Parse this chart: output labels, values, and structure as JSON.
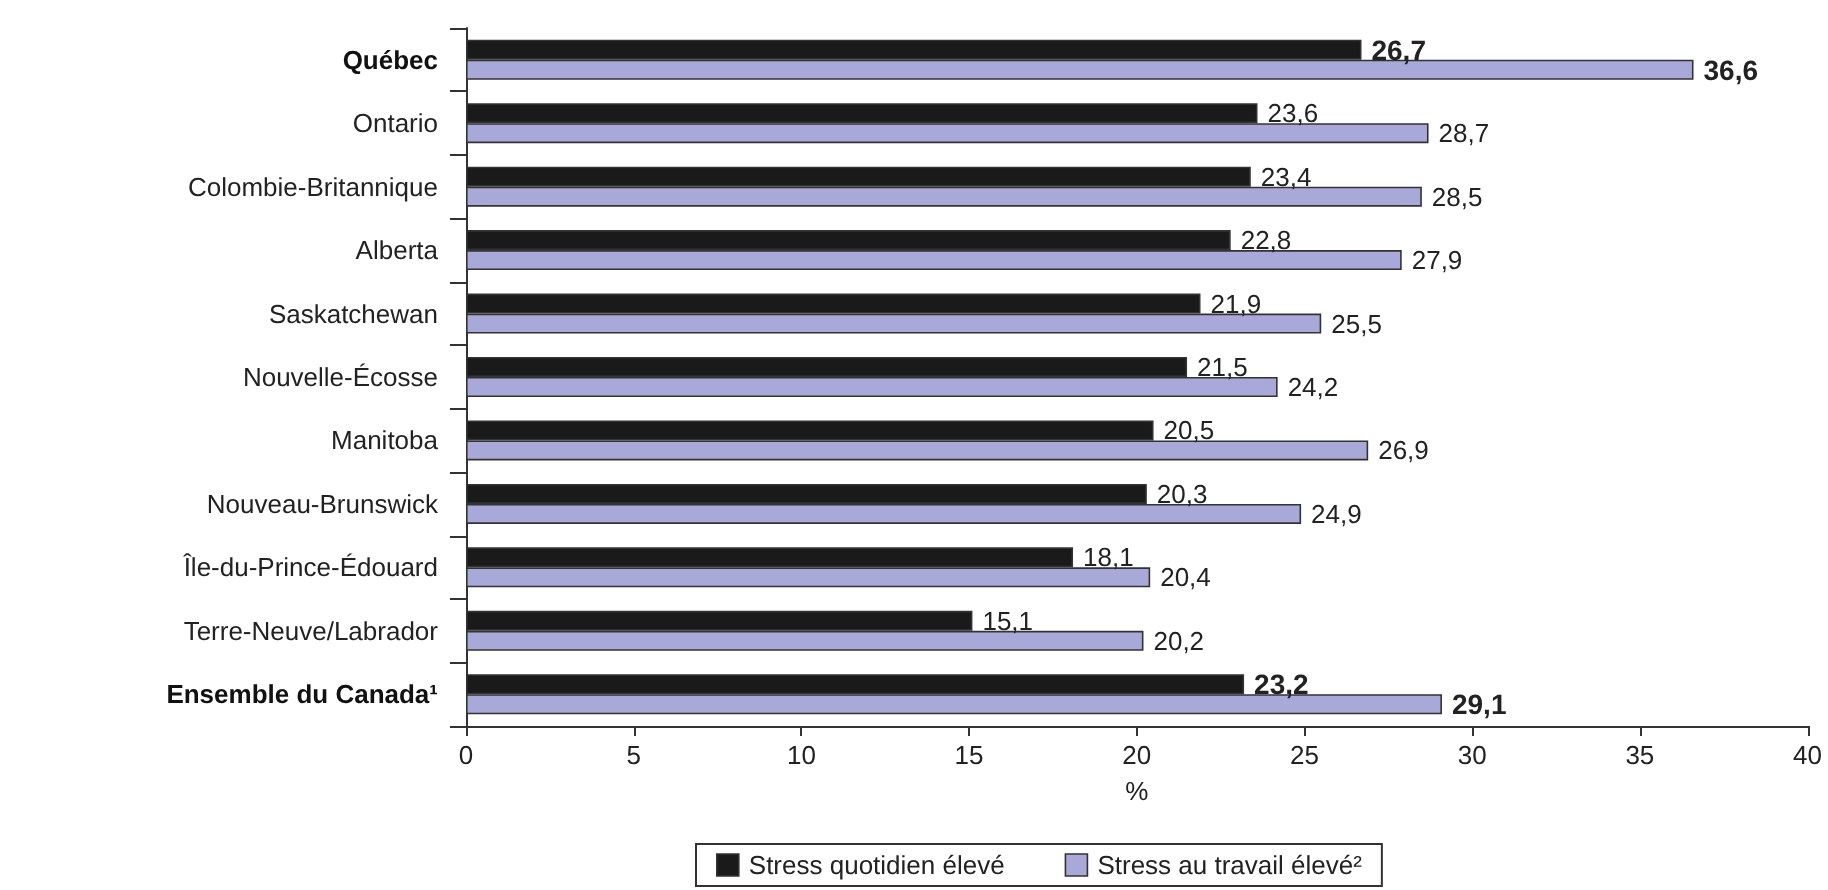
{
  "chart_data": {
    "type": "bar",
    "orientation": "horizontal",
    "xlabel": "%",
    "categories": [
      "Québec",
      "Ontario",
      "Colombie-Britannique",
      "Alberta",
      "Saskatchewan",
      "Nouvelle-Écosse",
      "Manitoba",
      "Nouveau-Brunswick",
      "Île-du-Prince-Édouard",
      "Terre-Neuve/Labrador",
      "Ensemble du Canada¹"
    ],
    "series": [
      {
        "name": "Stress quotidien élevé",
        "color": "#1a1a1a",
        "values": [
          26.7,
          23.6,
          23.4,
          22.8,
          21.9,
          21.5,
          20.5,
          20.3,
          18.1,
          15.1,
          23.2
        ],
        "value_labels": [
          "26,7",
          "23,6",
          "23,4",
          "22,8",
          "21,9",
          "21,5",
          "20,5",
          "20,3",
          "18,1",
          "15,1",
          "23,2"
        ]
      },
      {
        "name": "Stress au travail élevé²",
        "color": "#a9a9d9",
        "values": [
          36.6,
          28.7,
          28.5,
          27.9,
          25.5,
          24.2,
          26.9,
          24.9,
          20.4,
          20.2,
          29.1
        ],
        "value_labels": [
          "36,6",
          "28,7",
          "28,5",
          "27,9",
          "25,5",
          "24,2",
          "26,9",
          "24,9",
          "20,4",
          "20,2",
          "29,1"
        ]
      }
    ],
    "xlim": [
      0,
      40
    ],
    "xticks": [
      0,
      5,
      10,
      15,
      20,
      25,
      30,
      35,
      40
    ],
    "grid": false,
    "legend": "bottom"
  }
}
